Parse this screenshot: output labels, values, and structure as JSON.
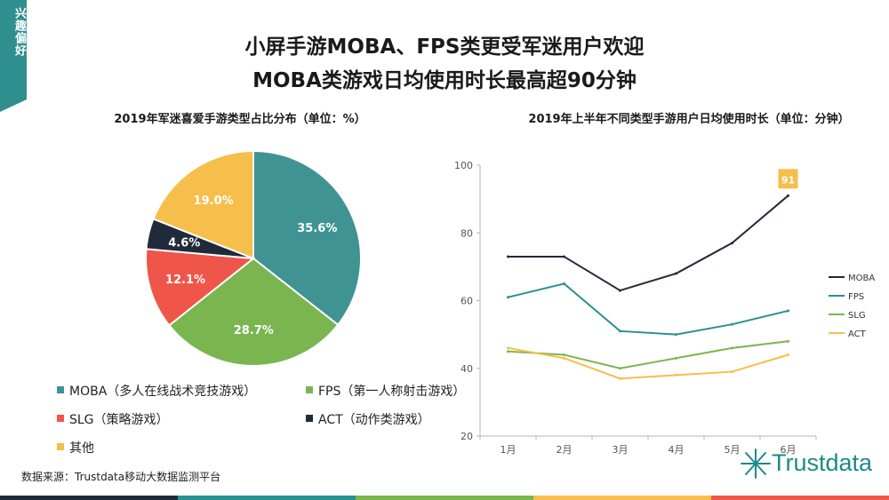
{
  "side_tag": "兴趣偏好",
  "title_line1": "小屏手游MOBA、FPS类更受军迷用户欢迎",
  "title_line2": "MOBA类游戏日均使用时长最高超90分钟",
  "source": "数据来源：Trustdata移动大数据监测平台",
  "logo_text": "Trustdata",
  "chart_data": [
    {
      "type": "pie",
      "title": "2019年军迷喜爱手游类型占比分布（单位：%）",
      "slices": [
        {
          "name": "MOBA（多人在线战术竞技游戏）",
          "value": 35.6,
          "label": "35.6%",
          "color": "#3f9393"
        },
        {
          "name": "FPS（第一人称射击游戏）",
          "value": 28.7,
          "label": "28.7%",
          "color": "#7ab550"
        },
        {
          "name": "SLG（策略游戏）",
          "value": 12.1,
          "label": "12.1%",
          "color": "#f0554a"
        },
        {
          "name": "ACT（动作类游戏）",
          "value": 4.6,
          "label": "4.6%",
          "color": "#1f2b3a"
        },
        {
          "name": "其他",
          "value": 19.0,
          "label": "19.0%",
          "color": "#f6be4b"
        }
      ]
    },
    {
      "type": "line",
      "title": "2019年上半年不同类型手游用户日均使用时长（单位：分钟）",
      "x": [
        "1月",
        "2月",
        "3月",
        "4月",
        "5月",
        "6月"
      ],
      "ylim": [
        20,
        100
      ],
      "yticks": [
        20,
        40,
        60,
        80,
        100
      ],
      "grid": false,
      "legend_position": "right",
      "series": [
        {
          "name": "MOBA",
          "color": "#1f2b3a",
          "values": [
            73,
            73,
            63,
            68,
            77,
            91
          ]
        },
        {
          "name": "FPS",
          "color": "#2a9090",
          "values": [
            61,
            65,
            51,
            50,
            53,
            57
          ]
        },
        {
          "name": "SLG",
          "color": "#7ab550",
          "values": [
            45,
            44,
            40,
            43,
            46,
            48
          ]
        },
        {
          "name": "ACT",
          "color": "#f6be4b",
          "values": [
            46,
            43,
            37,
            38,
            39,
            44
          ]
        }
      ],
      "annotation": {
        "series": "MOBA",
        "index": 5,
        "text": "91",
        "color": "#f6be4b"
      }
    }
  ],
  "bottom_bar_colors": [
    "#1f2b3a",
    "#2a9090",
    "#7ab550",
    "#f6be4b",
    "#f0554a"
  ]
}
